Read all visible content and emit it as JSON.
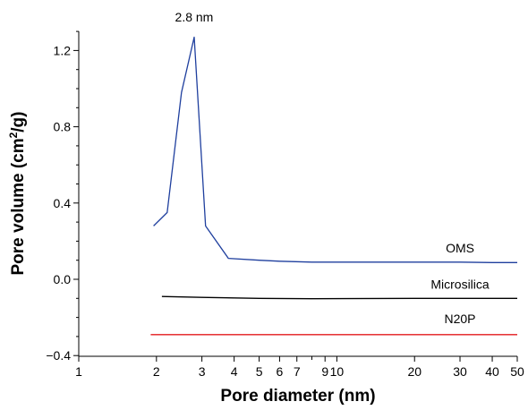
{
  "chart_data": {
    "type": "line",
    "xlabel": "Pore diameter (nm)",
    "ylabel_main": "Pore volume (cm",
    "ylabel_sup": "2",
    "ylabel_end": "/g)",
    "xscale": "log",
    "xlim": [
      1,
      50
    ],
    "ylim": [
      -0.4,
      1.3
    ],
    "x_ticks": [
      1,
      2,
      3,
      4,
      5,
      6,
      7,
      9,
      10,
      20,
      30,
      40,
      50
    ],
    "x_tick_labels": [
      "1",
      "2",
      "3",
      "4",
      "5",
      "6",
      "7",
      "9",
      "10",
      "20",
      "30",
      "40",
      "50"
    ],
    "y_ticks": [
      -0.4,
      0.0,
      0.4,
      0.8,
      1.2
    ],
    "y_tick_labels": [
      "−0.4",
      "0.0",
      "0.4",
      "0.8",
      "1.2"
    ],
    "grid": false,
    "annotation": {
      "text": "2.8 nm",
      "x": 2.8,
      "y": 1.27
    },
    "series": [
      {
        "name": "OMS",
        "color": "#1f3f9e",
        "x": [
          1.95,
          2.2,
          2.5,
          2.8,
          3.1,
          3.8,
          5,
          6,
          8,
          10,
          20,
          30,
          40,
          50
        ],
        "y": [
          0.28,
          0.35,
          0.98,
          1.27,
          0.28,
          0.11,
          0.1,
          0.095,
          0.09,
          0.09,
          0.09,
          0.09,
          0.088,
          0.088
        ],
        "label_pos": [
          30,
          0.14
        ]
      },
      {
        "name": "Microsilica",
        "color": "#000000",
        "x": [
          2.1,
          3,
          5,
          8,
          20,
          50
        ],
        "y": [
          -0.09,
          -0.095,
          -0.1,
          -0.102,
          -0.1,
          -0.1
        ],
        "label_pos": [
          30,
          -0.05
        ]
      },
      {
        "name": "N20P",
        "color": "#e31a1c",
        "x": [
          1.9,
          5,
          10,
          50
        ],
        "y": [
          -0.29,
          -0.29,
          -0.29,
          -0.29
        ],
        "label_pos": [
          30,
          -0.23
        ]
      }
    ]
  }
}
